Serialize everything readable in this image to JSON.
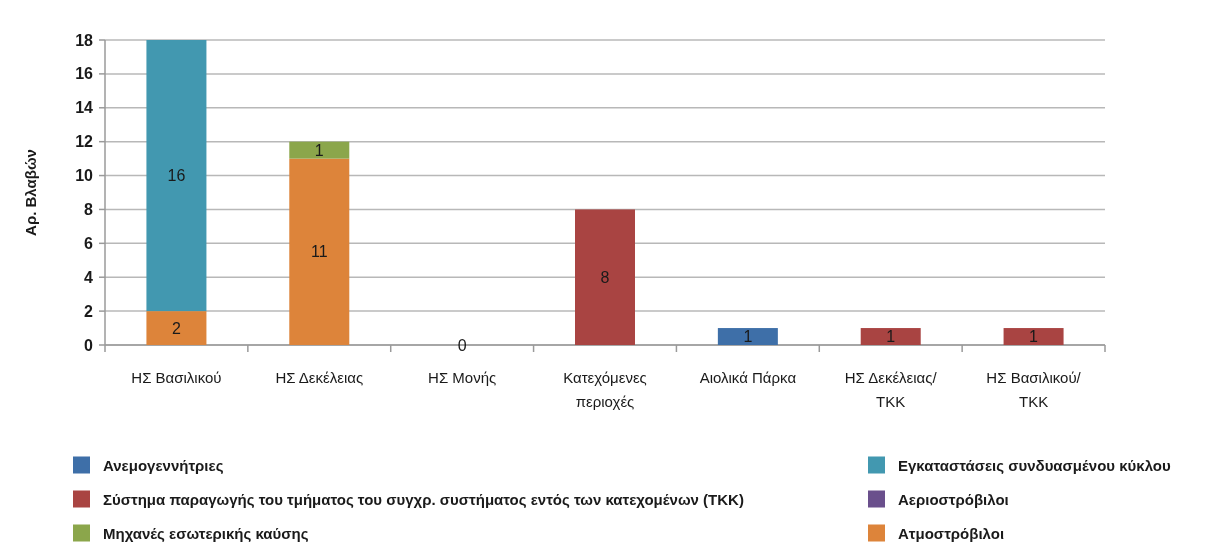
{
  "chart_data": {
    "type": "bar",
    "stacked": true,
    "categories": [
      "ΗΣ Βασιλικού",
      "ΗΣ Δεκέλειας",
      "ΗΣ Μονής",
      "Κατεχόμενες περιοχές",
      "Αιολικά Πάρκα",
      "ΗΣ Δεκέλειας/ΤΚΚ",
      "ΗΣ Βασιλικού/ΤΚΚ"
    ],
    "series": [
      {
        "name": "Ατμοστρόβιλοι",
        "color": "#dd843a",
        "values": [
          2,
          11,
          null,
          null,
          null,
          null,
          null
        ]
      },
      {
        "name": "Μηχανές εσωτερικής καύσης",
        "color": "#8ba64b",
        "values": [
          null,
          1,
          null,
          null,
          null,
          null,
          null
        ]
      },
      {
        "name": "Αεριοστρόβιλοι",
        "color": "#6a4f8c",
        "values": [
          null,
          null,
          0,
          null,
          null,
          null,
          null
        ]
      },
      {
        "name": "Σύστημα παραγωγής του τμήματος του συγχρ. συστήματος εντός των κατεχομένων (ΤΚΚ)",
        "color": "#a94442",
        "values": [
          null,
          null,
          null,
          8,
          null,
          1,
          1
        ]
      },
      {
        "name": "Εγκαταστάσεις συνδυασμένου κύκλου",
        "color": "#4298b0",
        "values": [
          16,
          null,
          null,
          null,
          null,
          null,
          null
        ]
      },
      {
        "name": "Ανεμογεννήτριες",
        "color": "#3e6fa8",
        "values": [
          null,
          null,
          null,
          null,
          1,
          null,
          null
        ]
      }
    ],
    "ylabel": "Αρ. Βλαβών",
    "ylim": [
      0,
      18
    ],
    "yticks": [
      0,
      2,
      4,
      6,
      8,
      10,
      12,
      14,
      16,
      18
    ],
    "grid": "y",
    "data_labels": true,
    "legend": "bottom"
  }
}
